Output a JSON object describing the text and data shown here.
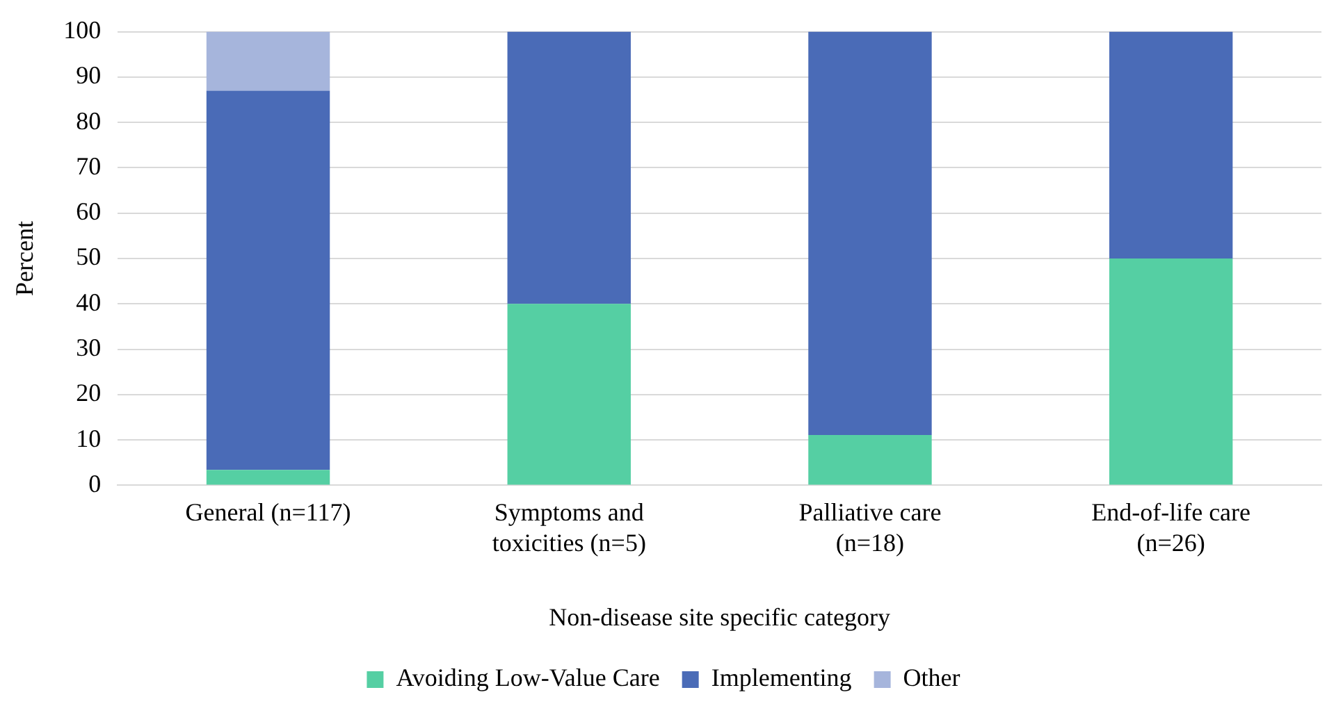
{
  "chart_data": {
    "type": "bar",
    "stacked": true,
    "xlabel": "Non-disease site specific category",
    "ylabel": "Percent",
    "categories": [
      "General (n=117)",
      "Symptoms and toxicities (n=5)",
      "Palliative care (n=18)",
      "End-of-life care (n=26)"
    ],
    "series": [
      {
        "name": "Avoiding Low-Value Care",
        "color": "#55cfa3",
        "values": [
          3.4,
          40,
          11.1,
          50
        ]
      },
      {
        "name": "Implementing",
        "color": "#4a6bb7",
        "values": [
          83.6,
          60,
          88.9,
          50
        ]
      },
      {
        "name": "Other",
        "color": "#a6b5dc",
        "values": [
          13,
          null,
          null,
          null
        ]
      }
    ],
    "ylim": [
      0,
      100
    ],
    "yticks": [
      0,
      10,
      20,
      30,
      40,
      50,
      60,
      70,
      80,
      90,
      100
    ],
    "grid": "y",
    "legend": "bottom"
  }
}
